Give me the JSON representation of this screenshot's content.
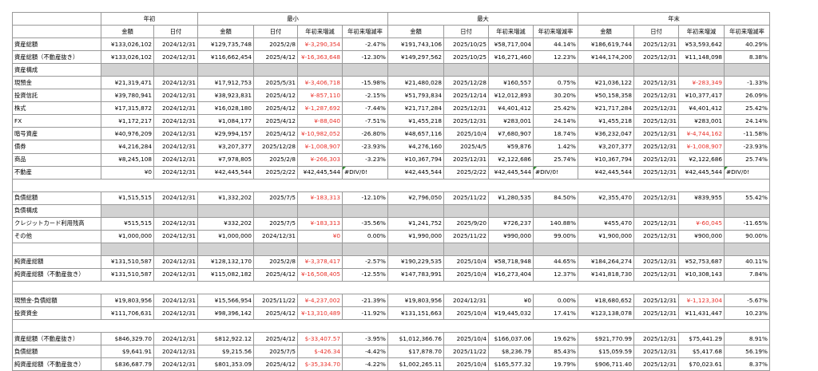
{
  "groups": [
    "年初",
    "最小",
    "最大",
    "年末"
  ],
  "subheaders": [
    "金額",
    "日付",
    "金額",
    "日付",
    "年初来増減",
    "年初来増減率",
    "金額",
    "日付",
    "年初来増減",
    "年初来増減率",
    "金額",
    "日付",
    "年初来増減",
    "年初来増減率"
  ],
  "rows": [
    {
      "kind": "data",
      "label": "資産総額",
      "cells": [
        "¥133,026,102",
        "2024/12/31",
        "¥129,735,748",
        "2025/2/8",
        "¥-3,290,354",
        "-2.47%",
        "¥191,743,106",
        "2025/10/25",
        "¥58,717,004",
        "44.14%",
        "¥186,619,744",
        "2025/12/31",
        "¥53,593,642",
        "40.29%"
      ],
      "neg": [
        4
      ]
    },
    {
      "kind": "data",
      "label": "資産総額（不動産抜き）",
      "cells": [
        "¥133,026,102",
        "2024/12/31",
        "¥116,662,454",
        "2025/4/12",
        "¥-16,363,648",
        "-12.30%",
        "¥149,297,562",
        "2025/10/25",
        "¥16,271,460",
        "12.23%",
        "¥144,174,200",
        "2025/12/31",
        "¥11,148,098",
        "8.38%"
      ],
      "neg": [
        4
      ]
    },
    {
      "kind": "gray",
      "label": "資産構成"
    },
    {
      "kind": "data",
      "label": "現預金",
      "cells": [
        "¥21,319,471",
        "2024/12/31",
        "¥17,912,753",
        "2025/5/31",
        "¥-3,406,718",
        "-15.98%",
        "¥21,480,028",
        "2025/12/28",
        "¥160,557",
        "0.75%",
        "¥21,036,122",
        "2025/12/31",
        "¥-283,349",
        "-1.33%"
      ],
      "neg": [
        4,
        12
      ]
    },
    {
      "kind": "data",
      "label": "投資信託",
      "cells": [
        "¥39,780,941",
        "2024/12/31",
        "¥38,923,831",
        "2025/4/12",
        "¥-857,110",
        "-2.15%",
        "¥51,793,834",
        "2025/12/14",
        "¥12,012,893",
        "30.20%",
        "¥50,158,358",
        "2025/12/31",
        "¥10,377,417",
        "26.09%"
      ],
      "neg": [
        4
      ]
    },
    {
      "kind": "data",
      "label": "株式",
      "cells": [
        "¥17,315,872",
        "2024/12/31",
        "¥16,028,180",
        "2025/4/12",
        "¥-1,287,692",
        "-7.44%",
        "¥21,717,284",
        "2025/12/31",
        "¥4,401,412",
        "25.42%",
        "¥21,717,284",
        "2025/12/31",
        "¥4,401,412",
        "25.42%"
      ],
      "neg": [
        4
      ]
    },
    {
      "kind": "data",
      "label": "FX",
      "cells": [
        "¥1,172,217",
        "2024/12/31",
        "¥1,084,177",
        "2025/4/12",
        "¥-88,040",
        "-7.51%",
        "¥1,455,218",
        "2025/12/31",
        "¥283,001",
        "24.14%",
        "¥1,455,218",
        "2025/12/31",
        "¥283,001",
        "24.14%"
      ],
      "neg": [
        4
      ]
    },
    {
      "kind": "data",
      "label": "暗号資産",
      "cells": [
        "¥40,976,209",
        "2024/12/31",
        "¥29,994,157",
        "2025/4/12",
        "¥-10,982,052",
        "-26.80%",
        "¥48,657,116",
        "2025/10/4",
        "¥7,680,907",
        "18.74%",
        "¥36,232,047",
        "2025/12/31",
        "¥-4,744,162",
        "-11.58%"
      ],
      "neg": [
        4,
        12
      ]
    },
    {
      "kind": "data",
      "label": "債券",
      "cells": [
        "¥4,216,284",
        "2024/12/31",
        "¥3,207,377",
        "2025/12/28",
        "¥-1,008,907",
        "-23.93%",
        "¥4,276,160",
        "2025/4/5",
        "¥59,876",
        "1.42%",
        "¥3,207,377",
        "2025/12/31",
        "¥-1,008,907",
        "-23.93%"
      ],
      "neg": [
        4,
        12
      ]
    },
    {
      "kind": "data",
      "label": "商品",
      "cells": [
        "¥8,245,108",
        "2024/12/31",
        "¥7,978,805",
        "2025/2/8",
        "¥-266,303",
        "-3.23%",
        "¥10,367,794",
        "2025/12/31",
        "¥2,122,686",
        "25.74%",
        "¥10,367,794",
        "2025/12/31",
        "¥2,122,686",
        "25.74%"
      ],
      "neg": [
        4
      ]
    },
    {
      "kind": "data",
      "label": "不動産",
      "cells": [
        "¥0",
        "2024/12/31",
        "¥42,445,544",
        "2025/2/22",
        "¥42,445,544",
        "#DIV/0!",
        "¥42,445,544",
        "2025/2/22",
        "¥42,445,544",
        "#DIV/0!",
        "¥42,445,544",
        "2025/12/31",
        "¥42,445,544",
        "#DIV/0!"
      ],
      "neg": [],
      "marks": [
        5,
        9,
        13
      ],
      "left": [
        5,
        9,
        13
      ]
    },
    {
      "kind": "blank"
    },
    {
      "kind": "data",
      "label": "負債総額",
      "cells": [
        "¥1,515,515",
        "2024/12/31",
        "¥1,332,202",
        "2025/7/5",
        "¥-183,313",
        "-12.10%",
        "¥2,796,050",
        "2025/11/22",
        "¥1,280,535",
        "84.50%",
        "¥2,355,470",
        "2025/12/31",
        "¥839,955",
        "55.42%"
      ],
      "neg": [
        4
      ]
    },
    {
      "kind": "gray",
      "label": "負債構成"
    },
    {
      "kind": "data",
      "label": "クレジットカード利用残高",
      "cells": [
        "¥515,515",
        "2024/12/31",
        "¥332,202",
        "2025/7/5",
        "¥-183,313",
        "-35.56%",
        "¥1,241,752",
        "2025/9/20",
        "¥726,237",
        "140.88%",
        "¥455,470",
        "2025/12/31",
        "¥-60,045",
        "-11.65%"
      ],
      "neg": [
        4,
        12
      ]
    },
    {
      "kind": "data",
      "label": "その他",
      "cells": [
        "¥1,000,000",
        "2024/12/31",
        "¥1,000,000",
        "2024/12/31",
        "¥0",
        "0.00%",
        "¥1,990,000",
        "2025/11/22",
        "¥990,000",
        "99.00%",
        "¥1,900,000",
        "2025/12/31",
        "¥900,000",
        "90.00%"
      ],
      "neg": [
        4
      ]
    },
    {
      "kind": "gray",
      "label": ""
    },
    {
      "kind": "data",
      "label": "純資産総額",
      "cells": [
        "¥131,510,587",
        "2024/12/31",
        "¥128,132,170",
        "2025/2/8",
        "¥-3,378,417",
        "-2.57%",
        "¥190,229,535",
        "2025/10/4",
        "¥58,718,948",
        "44.65%",
        "¥184,264,274",
        "2025/12/31",
        "¥52,753,687",
        "40.11%"
      ],
      "neg": [
        4
      ]
    },
    {
      "kind": "data",
      "label": "純資産総額（不動産抜き）",
      "cells": [
        "¥131,510,587",
        "2024/12/31",
        "¥115,082,182",
        "2025/4/12",
        "¥-16,508,405",
        "-12.55%",
        "¥147,783,991",
        "2025/10/4",
        "¥16,273,404",
        "12.37%",
        "¥141,818,730",
        "2025/12/31",
        "¥10,308,143",
        "7.84%"
      ],
      "neg": [
        4
      ]
    },
    {
      "kind": "blank"
    },
    {
      "kind": "data",
      "label": "現預金-負債総額",
      "cells": [
        "¥19,803,956",
        "2024/12/31",
        "¥15,566,954",
        "2025/11/22",
        "¥-4,237,002",
        "-21.39%",
        "¥19,803,956",
        "2024/12/31",
        "¥0",
        "0.00%",
        "¥18,680,652",
        "2025/12/31",
        "¥-1,123,304",
        "-5.67%"
      ],
      "neg": [
        4,
        12
      ],
      "sep": true
    },
    {
      "kind": "data",
      "label": "投資資金",
      "cells": [
        "¥111,706,631",
        "2024/12/31",
        "¥98,396,142",
        "2025/4/12",
        "¥-13,310,489",
        "-11.92%",
        "¥131,151,663",
        "2025/10/4",
        "¥19,445,032",
        "17.41%",
        "¥123,138,078",
        "2025/12/31",
        "¥11,431,447",
        "10.23%"
      ],
      "neg": [
        4
      ]
    },
    {
      "kind": "blank"
    },
    {
      "kind": "data",
      "label": "資産総額（不動産抜き）",
      "cells": [
        "$846,329.70",
        "2024/12/31",
        "$812,922.12",
        "2025/4/12",
        "$-33,407.57",
        "-3.95%",
        "$1,012,366.76",
        "2025/10/4",
        "$166,037.06",
        "19.62%",
        "$921,770.99",
        "2025/12/31",
        "$75,441.29",
        "8.91%"
      ],
      "neg": [
        4
      ],
      "sep": true
    },
    {
      "kind": "data",
      "label": "負債総額",
      "cells": [
        "$9,641.91",
        "2024/12/31",
        "$9,215.56",
        "2025/7/5",
        "$-426.34",
        "-4.42%",
        "$17,878.70",
        "2025/11/22",
        "$8,236.79",
        "85.43%",
        "$15,059.59",
        "2025/12/31",
        "$5,417.68",
        "56.19%"
      ],
      "neg": [
        4
      ]
    },
    {
      "kind": "data",
      "label": "純資産総額（不動産抜き）",
      "cells": [
        "$836,687.79",
        "2024/12/31",
        "$801,353.09",
        "2025/4/12",
        "$-35,334.70",
        "-4.22%",
        "$1,002,265.11",
        "2025/10/4",
        "$165,577.32",
        "19.79%",
        "$906,711.40",
        "2025/12/31",
        "$70,023.61",
        "8.37%"
      ],
      "neg": [
        4
      ]
    }
  ]
}
